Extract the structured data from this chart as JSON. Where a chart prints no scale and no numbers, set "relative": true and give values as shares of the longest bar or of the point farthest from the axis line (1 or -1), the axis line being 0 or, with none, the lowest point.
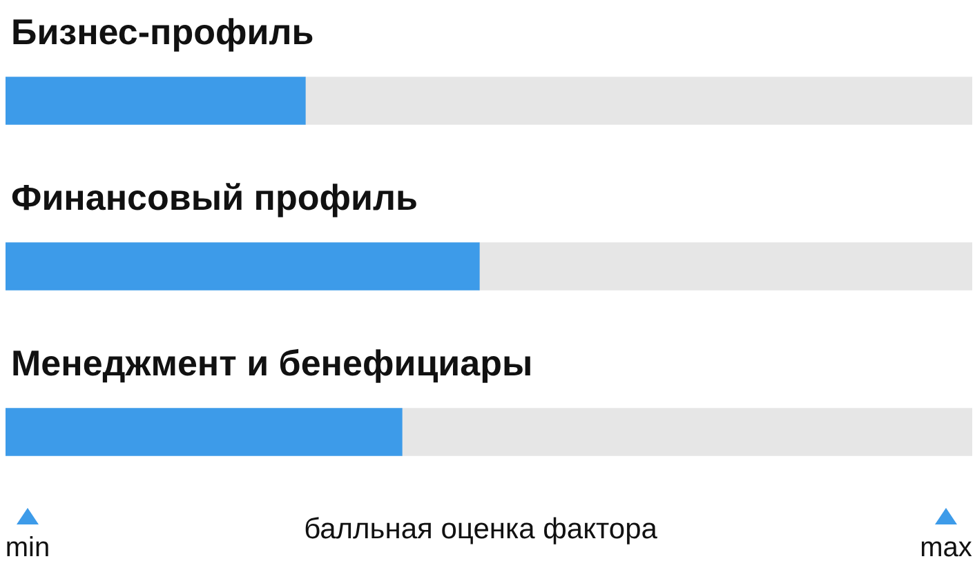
{
  "chart_data": {
    "type": "bar",
    "orientation": "horizontal",
    "stacked": true,
    "relative": true,
    "categories": [
      "Бизнес-профиль",
      "Финансовый профиль",
      "Менеджмент и бенефициары"
    ],
    "series": [
      {
        "color": "#3d9be9",
        "values": [
          0.31,
          0.49,
          0.41
        ]
      },
      {
        "color": "#e6e6e6",
        "values": [
          0.69,
          0.51,
          0.59
        ]
      }
    ],
    "xlabel": "балльная оценка фактора",
    "annotations": [
      "min",
      "max"
    ]
  }
}
